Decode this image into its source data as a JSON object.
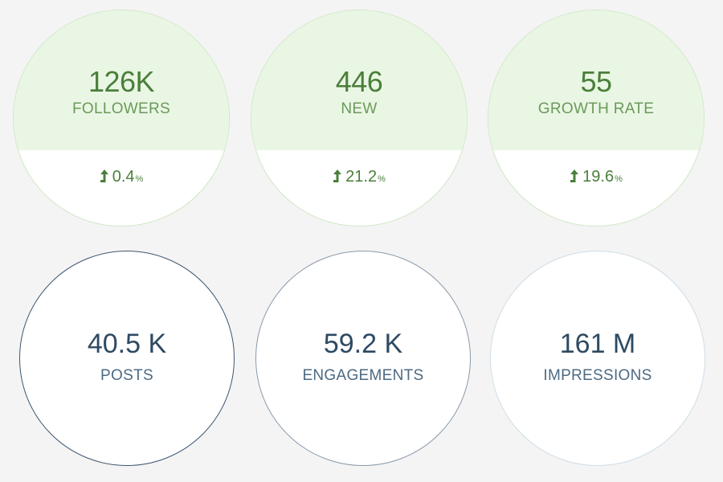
{
  "growth_cards": [
    {
      "value": "126K",
      "label": "FOLLOWERS",
      "change": "0.4",
      "unit": "%",
      "trend_icon": "arrow-up-icon"
    },
    {
      "value": "446",
      "label": "NEW",
      "change": "21.2",
      "unit": "%",
      "trend_icon": "arrow-up-icon"
    },
    {
      "value": "55",
      "label": "GROWTH RATE",
      "change": "19.6",
      "unit": "%",
      "trend_icon": "arrow-up-icon"
    }
  ],
  "stat_cards": [
    {
      "value": "40.5 K",
      "label": "POSTS",
      "border_color": "#3d5670"
    },
    {
      "value": "59.2 K",
      "label": "ENGAGEMENTS",
      "border_color": "#8a9aaa"
    },
    {
      "value": "161 M",
      "label": "IMPRESSIONS",
      "border_color": "#cfdde8"
    }
  ],
  "colors": {
    "background": "#f4f4f4",
    "growth_fill": "#eaf6e4",
    "growth_text": "#4a7f3a",
    "stat_text": "#2e4a63"
  }
}
